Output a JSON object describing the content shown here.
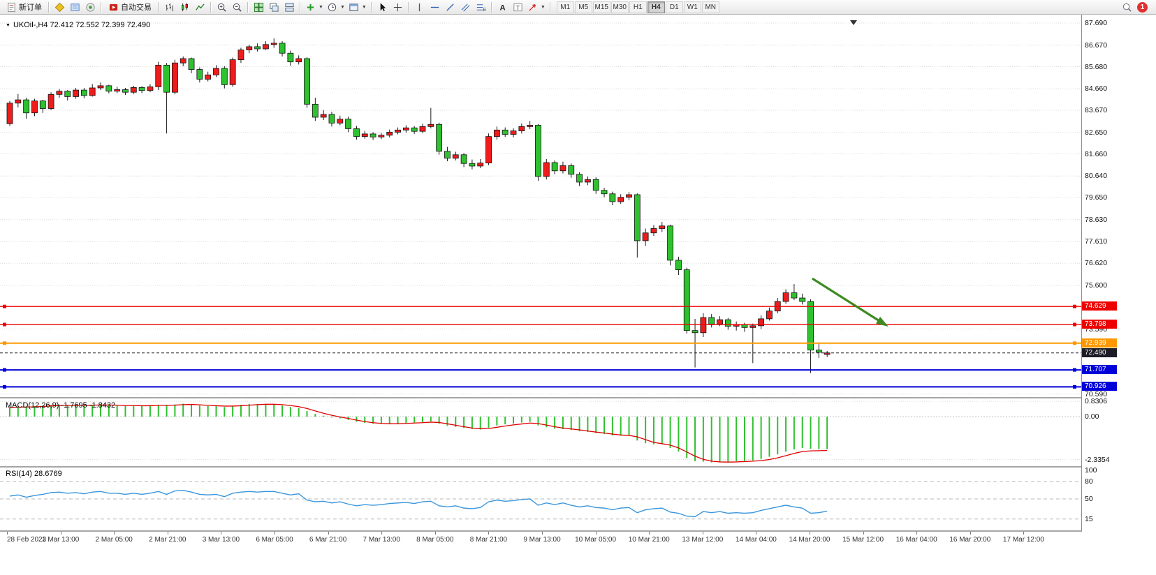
{
  "toolbar": {
    "new_order_label": "新订单",
    "auto_trading_label": "自动交易",
    "timeframes": [
      "M1",
      "M5",
      "M15",
      "M30",
      "H1",
      "H4",
      "D1",
      "W1",
      "MN"
    ],
    "active_timeframe": "H4",
    "notification_badge": "1"
  },
  "chart_header": "UKOil-,H4  72.412 72.552 72.399 72.490",
  "price_axis": [
    {
      "value": 87.69,
      "label": "87.690"
    },
    {
      "value": 86.67,
      "label": "86.670"
    },
    {
      "value": 85.68,
      "label": "85.680"
    },
    {
      "value": 84.66,
      "label": "84.660"
    },
    {
      "value": 83.67,
      "label": "83.670"
    },
    {
      "value": 82.65,
      "label": "82.650"
    },
    {
      "value": 81.66,
      "label": "81.660"
    },
    {
      "value": 80.64,
      "label": "80.640"
    },
    {
      "value": 79.65,
      "label": "79.650"
    },
    {
      "value": 78.63,
      "label": "78.630"
    },
    {
      "value": 77.61,
      "label": "77.610"
    },
    {
      "value": 76.62,
      "label": "76.620"
    },
    {
      "value": 75.6,
      "label": "75.600"
    },
    {
      "value": 73.59,
      "label": "73.590"
    },
    {
      "value": 70.59,
      "label": "70.590"
    }
  ],
  "levels": [
    {
      "name": "resistance-line-1",
      "price": 74.629,
      "label": "74.629",
      "color": "#ee0000",
      "width": 1.4,
      "style": "solid"
    },
    {
      "name": "resistance-line-2",
      "price": 73.798,
      "label": "73.798",
      "color": "#ee0000",
      "width": 1.4,
      "style": "solid"
    },
    {
      "name": "pivot-line",
      "price": 72.939,
      "label": "72.939",
      "color": "#ff9800",
      "width": 2,
      "style": "solid"
    },
    {
      "name": "current-price-line",
      "price": 72.49,
      "label": "72.490",
      "color": "#1c1c26",
      "width": 1,
      "style": "current"
    },
    {
      "name": "support-line-1",
      "price": 71.707,
      "label": "71.707",
      "color": "#0000d8",
      "width": 2,
      "style": "solid"
    },
    {
      "name": "support-line-2",
      "price": 70.926,
      "label": "70.926",
      "color": "#0000d8",
      "width": 2,
      "style": "solid"
    }
  ],
  "arrow": {
    "from_index": 97.2,
    "from_price": 75.92,
    "to_index": 106,
    "to_price": 73.8,
    "color": "#3b8a1e"
  },
  "time_axis": [
    "28 Feb 2023",
    "1 Mar 13:00",
    "2 Mar 05:00",
    "2 Mar 21:00",
    "3 Mar 13:00",
    "6 Mar 05:00",
    "6 Mar 21:00",
    "7 Mar 13:00",
    "8 Mar 05:00",
    "8 Mar 21:00",
    "9 Mar 13:00",
    "10 Mar 05:00",
    "10 Mar 21:00",
    "13 Mar 12:00",
    "14 Mar 04:00",
    "14 Mar 20:00",
    "15 Mar 12:00",
    "16 Mar 04:00",
    "16 Mar 20:00",
    "17 Mar 12:00"
  ],
  "macd_panel": {
    "label": "MACD(12,26,9) -1.7695 -1.8432",
    "scale": [
      {
        "value": 0.8306,
        "label": "0.8306"
      },
      {
        "value": 0,
        "label": "0.00"
      },
      {
        "value": -2.3354,
        "label": "-2.3354"
      }
    ]
  },
  "rsi_panel": {
    "label": "RSI(14) 28.6769",
    "scale": [
      {
        "value": 100,
        "label": "100"
      },
      {
        "value": 80,
        "label": "80"
      },
      {
        "value": 50,
        "label": "50"
      },
      {
        "value": 15,
        "label": "15"
      }
    ],
    "levels": [
      80,
      50,
      15
    ]
  },
  "colors": {
    "bull": "#ee1c1c",
    "bear": "#2fc12f",
    "wick": "#1a1a1a",
    "macd_histogram": "#2fc12f",
    "macd_signal": "#e00000",
    "rsi_line": "#3a96dd",
    "grid": "#dcdcdc"
  },
  "chart_data": {
    "type": "candlestick",
    "symbol": "UKOil-",
    "timeframe": "H4",
    "ohlc": [
      [
        83.05,
        84.1,
        82.95,
        84.0
      ],
      [
        84.0,
        84.42,
        83.8,
        84.15
      ],
      [
        84.15,
        84.25,
        83.28,
        83.55
      ],
      [
        83.55,
        84.2,
        83.4,
        84.1
      ],
      [
        84.1,
        84.15,
        83.55,
        83.75
      ],
      [
        83.75,
        84.5,
        83.68,
        84.4
      ],
      [
        84.4,
        84.65,
        84.25,
        84.55
      ],
      [
        84.55,
        84.6,
        84.12,
        84.3
      ],
      [
        84.3,
        84.7,
        84.2,
        84.6
      ],
      [
        84.6,
        84.7,
        84.22,
        84.35
      ],
      [
        84.35,
        84.88,
        84.3,
        84.7
      ],
      [
        84.7,
        84.95,
        84.6,
        84.8
      ],
      [
        84.8,
        84.85,
        84.45,
        84.55
      ],
      [
        84.55,
        84.75,
        84.45,
        84.62
      ],
      [
        84.62,
        84.7,
        84.38,
        84.5
      ],
      [
        84.5,
        84.8,
        84.42,
        84.72
      ],
      [
        84.72,
        84.78,
        84.46,
        84.58
      ],
      [
        84.58,
        84.88,
        84.5,
        84.75
      ],
      [
        84.75,
        85.9,
        84.6,
        85.75
      ],
      [
        85.75,
        85.85,
        82.6,
        84.5
      ],
      [
        84.5,
        86.0,
        84.4,
        85.85
      ],
      [
        85.85,
        86.15,
        85.7,
        86.05
      ],
      [
        86.05,
        86.1,
        85.38,
        85.55
      ],
      [
        85.55,
        85.65,
        84.95,
        85.1
      ],
      [
        85.1,
        85.45,
        85.0,
        85.3
      ],
      [
        85.3,
        85.75,
        85.2,
        85.6
      ],
      [
        85.6,
        85.7,
        84.68,
        84.85
      ],
      [
        84.85,
        86.1,
        84.75,
        86.0
      ],
      [
        86.0,
        86.55,
        85.85,
        86.45
      ],
      [
        86.45,
        86.7,
        86.3,
        86.6
      ],
      [
        86.6,
        86.75,
        86.38,
        86.5
      ],
      [
        86.5,
        86.85,
        86.45,
        86.7
      ],
      [
        86.7,
        86.98,
        86.55,
        86.76
      ],
      [
        86.76,
        86.85,
        86.15,
        86.3
      ],
      [
        86.3,
        86.42,
        85.72,
        85.9
      ],
      [
        85.9,
        86.2,
        85.78,
        86.05
      ],
      [
        86.05,
        86.12,
        83.78,
        83.95
      ],
      [
        83.95,
        84.25,
        83.18,
        83.35
      ],
      [
        83.35,
        83.68,
        83.22,
        83.48
      ],
      [
        83.48,
        83.6,
        82.92,
        83.08
      ],
      [
        83.08,
        83.42,
        82.98,
        83.26
      ],
      [
        83.26,
        83.38,
        82.66,
        82.82
      ],
      [
        82.82,
        82.95,
        82.32,
        82.46
      ],
      [
        82.46,
        82.72,
        82.36,
        82.58
      ],
      [
        82.58,
        82.66,
        82.3,
        82.44
      ],
      [
        82.44,
        82.62,
        82.34,
        82.52
      ],
      [
        82.52,
        82.78,
        82.42,
        82.66
      ],
      [
        82.66,
        82.88,
        82.56,
        82.76
      ],
      [
        82.76,
        82.98,
        82.64,
        82.86
      ],
      [
        82.86,
        82.94,
        82.58,
        82.7
      ],
      [
        82.7,
        83.05,
        82.62,
        82.92
      ],
      [
        82.92,
        83.78,
        82.84,
        83.02
      ],
      [
        83.02,
        83.1,
        81.62,
        81.78
      ],
      [
        81.78,
        81.98,
        81.32,
        81.46
      ],
      [
        81.46,
        81.76,
        81.36,
        81.62
      ],
      [
        81.62,
        81.7,
        81.05,
        81.22
      ],
      [
        81.22,
        81.4,
        80.95,
        81.1
      ],
      [
        81.1,
        81.42,
        81.0,
        81.24
      ],
      [
        81.24,
        82.6,
        81.14,
        82.46
      ],
      [
        82.46,
        82.92,
        82.32,
        82.76
      ],
      [
        82.76,
        82.88,
        82.44,
        82.56
      ],
      [
        82.56,
        82.84,
        82.42,
        82.72
      ],
      [
        82.72,
        83.06,
        82.6,
        82.92
      ],
      [
        82.92,
        83.18,
        82.8,
        82.98
      ],
      [
        82.98,
        83.04,
        80.42,
        80.62
      ],
      [
        80.62,
        81.42,
        80.48,
        81.26
      ],
      [
        81.26,
        81.36,
        80.72,
        80.88
      ],
      [
        80.88,
        81.3,
        80.76,
        81.12
      ],
      [
        81.12,
        81.22,
        80.56,
        80.72
      ],
      [
        80.72,
        80.82,
        80.18,
        80.36
      ],
      [
        80.36,
        80.62,
        80.22,
        80.48
      ],
      [
        80.48,
        80.58,
        79.82,
        79.98
      ],
      [
        79.98,
        80.1,
        79.66,
        79.82
      ],
      [
        79.82,
        79.92,
        79.3,
        79.46
      ],
      [
        79.46,
        79.8,
        79.36,
        79.66
      ],
      [
        79.66,
        79.9,
        79.52,
        79.78
      ],
      [
        79.78,
        79.84,
        76.88,
        77.66
      ],
      [
        77.66,
        78.22,
        77.42,
        78.02
      ],
      [
        78.02,
        78.38,
        77.88,
        78.22
      ],
      [
        78.22,
        78.52,
        78.06,
        78.34
      ],
      [
        78.34,
        78.4,
        76.52,
        76.76
      ],
      [
        76.76,
        76.92,
        76.08,
        76.32
      ],
      [
        76.32,
        76.42,
        73.38,
        73.52
      ],
      [
        73.52,
        74.06,
        71.82,
        73.42
      ],
      [
        73.42,
        74.32,
        73.22,
        74.12
      ],
      [
        74.12,
        74.28,
        73.66,
        73.82
      ],
      [
        73.82,
        74.18,
        73.72,
        74.02
      ],
      [
        74.02,
        74.1,
        73.56,
        73.72
      ],
      [
        73.72,
        73.94,
        73.52,
        73.8
      ],
      [
        73.8,
        73.88,
        73.46,
        73.66
      ],
      [
        73.66,
        73.84,
        72.02,
        73.74
      ],
      [
        73.74,
        74.22,
        73.58,
        74.06
      ],
      [
        74.06,
        74.58,
        73.98,
        74.42
      ],
      [
        74.42,
        75.02,
        74.32,
        74.86
      ],
      [
        74.86,
        75.42,
        74.76,
        75.26
      ],
      [
        75.26,
        75.66,
        74.92,
        75.02
      ],
      [
        75.02,
        75.22,
        74.72,
        74.86
      ],
      [
        74.86,
        74.96,
        71.56,
        72.62
      ],
      [
        72.62,
        72.92,
        72.26,
        72.52
      ],
      [
        72.42,
        72.58,
        72.3,
        72.49
      ]
    ],
    "macd": {
      "histogram": [
        0.52,
        0.55,
        0.53,
        0.57,
        0.6,
        0.63,
        0.65,
        0.62,
        0.6,
        0.62,
        0.64,
        0.66,
        0.63,
        0.6,
        0.58,
        0.6,
        0.58,
        0.6,
        0.64,
        0.6,
        0.66,
        0.7,
        0.66,
        0.6,
        0.57,
        0.58,
        0.52,
        0.58,
        0.64,
        0.68,
        0.68,
        0.68,
        0.66,
        0.6,
        0.52,
        0.46,
        0.3,
        0.15,
        0.05,
        -0.05,
        -0.1,
        -0.18,
        -0.28,
        -0.34,
        -0.38,
        -0.4,
        -0.4,
        -0.38,
        -0.35,
        -0.33,
        -0.3,
        -0.26,
        -0.38,
        -0.5,
        -0.56,
        -0.62,
        -0.68,
        -0.7,
        -0.6,
        -0.48,
        -0.42,
        -0.38,
        -0.32,
        -0.28,
        -0.48,
        -0.58,
        -0.66,
        -0.68,
        -0.72,
        -0.8,
        -0.84,
        -0.9,
        -0.95,
        -1.02,
        -1.04,
        -1.02,
        -1.3,
        -1.45,
        -1.5,
        -1.5,
        -1.7,
        -1.9,
        -2.25,
        -2.42,
        -2.45,
        -2.48,
        -2.46,
        -2.45,
        -2.42,
        -2.4,
        -2.38,
        -2.3,
        -2.18,
        -2.05,
        -1.9,
        -1.78,
        -1.7,
        -1.75,
        -1.77,
        -1.7695
      ],
      "signal": [
        0.5,
        0.51,
        0.52,
        0.53,
        0.55,
        0.58,
        0.6,
        0.61,
        0.61,
        0.61,
        0.62,
        0.63,
        0.63,
        0.62,
        0.6,
        0.6,
        0.59,
        0.59,
        0.61,
        0.61,
        0.62,
        0.65,
        0.66,
        0.64,
        0.61,
        0.59,
        0.57,
        0.57,
        0.59,
        0.62,
        0.65,
        0.67,
        0.67,
        0.65,
        0.6,
        0.54,
        0.44,
        0.31,
        0.18,
        0.07,
        -0.02,
        -0.1,
        -0.19,
        -0.27,
        -0.33,
        -0.37,
        -0.39,
        -0.39,
        -0.37,
        -0.35,
        -0.33,
        -0.3,
        -0.32,
        -0.39,
        -0.47,
        -0.55,
        -0.62,
        -0.66,
        -0.65,
        -0.58,
        -0.51,
        -0.45,
        -0.4,
        -0.35,
        -0.38,
        -0.46,
        -0.55,
        -0.62,
        -0.67,
        -0.72,
        -0.78,
        -0.84,
        -0.89,
        -0.95,
        -1.0,
        -1.02,
        -1.1,
        -1.25,
        -1.4,
        -1.47,
        -1.55,
        -1.7,
        -1.92,
        -2.15,
        -2.32,
        -2.42,
        -2.46,
        -2.47,
        -2.46,
        -2.44,
        -2.42,
        -2.39,
        -2.33,
        -2.24,
        -2.12,
        -2.0,
        -1.9,
        -1.86,
        -1.85,
        -1.8432
      ]
    },
    "rsi": {
      "values": [
        55,
        57,
        53,
        56,
        58,
        61,
        62,
        60,
        61,
        59,
        62,
        63,
        60,
        60,
        58,
        60,
        58,
        60,
        63,
        58,
        64,
        65,
        62,
        58,
        57,
        58,
        54,
        60,
        62,
        63,
        62,
        63,
        63,
        60,
        57,
        59,
        48,
        45,
        46,
        43,
        45,
        41,
        38,
        40,
        39,
        40,
        42,
        43,
        44,
        42,
        45,
        46,
        38,
        36,
        38,
        34,
        33,
        35,
        45,
        48,
        46,
        47,
        49,
        50,
        39,
        43,
        40,
        43,
        39,
        36,
        38,
        35,
        34,
        31,
        34,
        35,
        26,
        31,
        33,
        34,
        27,
        25,
        20,
        19,
        28,
        26,
        28,
        25,
        26,
        25,
        26,
        30,
        33,
        36,
        39,
        36,
        34,
        25,
        26,
        28.68
      ]
    }
  }
}
